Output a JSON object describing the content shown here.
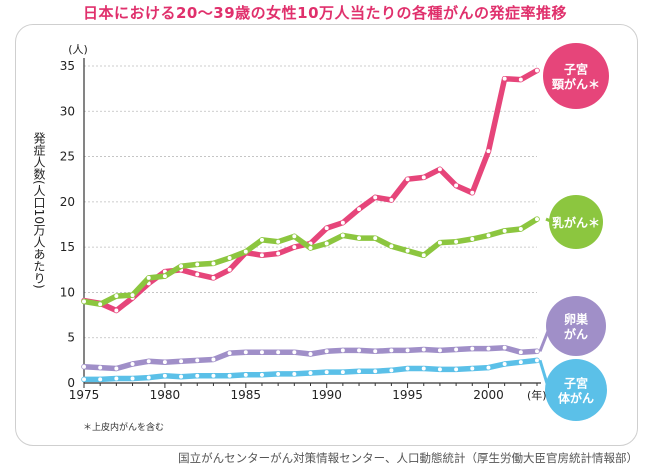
{
  "chart_data": {
    "type": "line",
    "title": "日本における20〜39歳の女性10万人当たりの各種がんの発症率推移",
    "ylabel": "発症人数(人口10万人あたり)",
    "yunit": "(人)",
    "xunit": "(年)",
    "ylim": [
      0,
      35
    ],
    "xlim": [
      1975,
      2003
    ],
    "x_ticks": [
      "1975",
      "1980",
      "1985",
      "1990",
      "1995",
      "2000"
    ],
    "y_ticks": [
      "0",
      "5",
      "10",
      "15",
      "20",
      "25",
      "30",
      "35"
    ],
    "note": "＊上皮内がんを含む",
    "source": "国立がんセンターがん対策情報センター、人口動態統計（厚生労働大臣官房統計情報部）",
    "x": [
      1975,
      1976,
      1977,
      1978,
      1979,
      1980,
      1981,
      1982,
      1983,
      1984,
      1985,
      1986,
      1987,
      1988,
      1989,
      1990,
      1991,
      1992,
      1993,
      1994,
      1995,
      1996,
      1997,
      1998,
      1999,
      2000,
      2001,
      2002,
      2003
    ],
    "series": [
      {
        "name": "子宮頸がん＊",
        "label_lines": [
          "子宮",
          "頸がん＊"
        ],
        "color": "#e6457a",
        "values": [
          9.1,
          8.8,
          8.0,
          9.4,
          11.0,
          12.3,
          12.5,
          12.0,
          11.6,
          12.5,
          14.4,
          14.1,
          14.3,
          15.0,
          15.4,
          17.1,
          17.7,
          19.2,
          20.5,
          20.2,
          22.5,
          22.7,
          23.6,
          21.8,
          21.0,
          25.6,
          33.6,
          33.5,
          34.5
        ]
      },
      {
        "name": "乳がん＊",
        "label_lines": [
          "乳がん＊"
        ],
        "color": "#8cc63f",
        "values": [
          9.0,
          8.7,
          9.6,
          9.7,
          11.6,
          11.8,
          12.9,
          13.1,
          13.2,
          13.8,
          14.5,
          15.8,
          15.6,
          16.2,
          14.9,
          15.4,
          16.3,
          16.0,
          16.0,
          15.1,
          14.6,
          14.1,
          15.5,
          15.6,
          15.9,
          16.3,
          16.8,
          17.0,
          18.1
        ]
      },
      {
        "name": "卵巣がん",
        "label_lines": [
          "卵巣",
          "がん"
        ],
        "color": "#a08fc8",
        "values": [
          1.8,
          1.7,
          1.6,
          2.1,
          2.4,
          2.3,
          2.4,
          2.5,
          2.6,
          3.3,
          3.4,
          3.4,
          3.4,
          3.4,
          3.2,
          3.5,
          3.6,
          3.6,
          3.5,
          3.6,
          3.6,
          3.7,
          3.6,
          3.7,
          3.8,
          3.8,
          3.9,
          3.4,
          3.5
        ]
      },
      {
        "name": "子宮体がん",
        "label_lines": [
          "子宮",
          "体がん"
        ],
        "color": "#5bc0e8",
        "values": [
          0.4,
          0.4,
          0.5,
          0.5,
          0.6,
          0.8,
          0.7,
          0.8,
          0.8,
          0.8,
          0.9,
          0.9,
          1.0,
          1.0,
          1.1,
          1.2,
          1.2,
          1.3,
          1.3,
          1.4,
          1.6,
          1.6,
          1.5,
          1.5,
          1.6,
          1.7,
          2.1,
          2.3,
          2.5
        ]
      }
    ]
  }
}
